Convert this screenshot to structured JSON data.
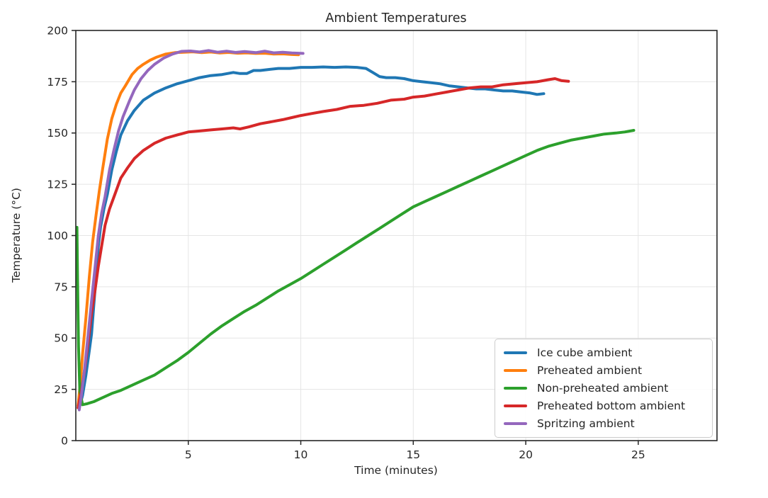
{
  "figure": {
    "title": "Ambient Temperatures",
    "xlabel": "Time (minutes)",
    "ylabel": "Temperature (°C)"
  },
  "chart_data": {
    "type": "line",
    "title": "Ambient Temperatures",
    "xlabel": "Time (minutes)",
    "ylabel": "Temperature (°C)",
    "xlim": [
      0,
      28.5
    ],
    "ylim": [
      0,
      200
    ],
    "xticks": [
      5,
      10,
      15,
      20,
      25
    ],
    "yticks": [
      0,
      25,
      50,
      75,
      100,
      125,
      150,
      175,
      200
    ],
    "grid": true,
    "grid_color": "#e5e5e5",
    "spine_color": "#262626",
    "legend": {
      "position": "lower right",
      "entries": [
        "Ice cube ambient",
        "Preheated ambient",
        "Non-preheated ambient",
        "Preheated bottom ambient",
        "Spritzing ambient"
      ]
    },
    "series": [
      {
        "name": "Ice cube ambient",
        "color": "#1f77b4",
        "points": [
          [
            0.15,
            16
          ],
          [
            0.3,
            22
          ],
          [
            0.45,
            32
          ],
          [
            0.6,
            44
          ],
          [
            0.7,
            52
          ],
          [
            0.8,
            66
          ],
          [
            0.9,
            80
          ],
          [
            1.0,
            95
          ],
          [
            1.1,
            104
          ],
          [
            1.25,
            113
          ],
          [
            1.4,
            120
          ],
          [
            1.6,
            132
          ],
          [
            1.8,
            141
          ],
          [
            2.0,
            149
          ],
          [
            2.3,
            156
          ],
          [
            2.6,
            161
          ],
          [
            3.0,
            166
          ],
          [
            3.5,
            169.5
          ],
          [
            4.0,
            172
          ],
          [
            4.5,
            174
          ],
          [
            5.0,
            175.5
          ],
          [
            5.5,
            177
          ],
          [
            6.0,
            178
          ],
          [
            6.5,
            178.5
          ],
          [
            7.0,
            179.5
          ],
          [
            7.3,
            179
          ],
          [
            7.6,
            179
          ],
          [
            7.9,
            180.5
          ],
          [
            8.2,
            180.5
          ],
          [
            8.6,
            181
          ],
          [
            9.0,
            181.5
          ],
          [
            9.5,
            181.5
          ],
          [
            10.0,
            182
          ],
          [
            10.5,
            182
          ],
          [
            11.0,
            182.2
          ],
          [
            11.5,
            182
          ],
          [
            12.0,
            182.2
          ],
          [
            12.5,
            182
          ],
          [
            12.9,
            181.5
          ],
          [
            13.2,
            179.5
          ],
          [
            13.5,
            177.5
          ],
          [
            13.8,
            177
          ],
          [
            14.2,
            177
          ],
          [
            14.6,
            176.5
          ],
          [
            15.0,
            175.5
          ],
          [
            15.4,
            175
          ],
          [
            15.8,
            174.5
          ],
          [
            16.2,
            174
          ],
          [
            16.6,
            173
          ],
          [
            17.0,
            172.5
          ],
          [
            17.4,
            172
          ],
          [
            17.8,
            171.5
          ],
          [
            18.2,
            171.5
          ],
          [
            18.6,
            171
          ],
          [
            19.0,
            170.5
          ],
          [
            19.4,
            170.5
          ],
          [
            19.8,
            170
          ],
          [
            20.2,
            169.5
          ],
          [
            20.5,
            168.8
          ],
          [
            20.8,
            169.2
          ]
        ]
      },
      {
        "name": "Preheated ambient",
        "color": "#ff7f0e",
        "points": [
          [
            0.1,
            17
          ],
          [
            0.2,
            28
          ],
          [
            0.3,
            42
          ],
          [
            0.45,
            60
          ],
          [
            0.6,
            80
          ],
          [
            0.75,
            97
          ],
          [
            0.9,
            110
          ],
          [
            1.05,
            122
          ],
          [
            1.2,
            133
          ],
          [
            1.4,
            147
          ],
          [
            1.6,
            157
          ],
          [
            1.8,
            164
          ],
          [
            2.0,
            169.5
          ],
          [
            2.2,
            173
          ],
          [
            2.5,
            178.5
          ],
          [
            2.75,
            181.5
          ],
          [
            3.0,
            183.5
          ],
          [
            3.3,
            185.5
          ],
          [
            3.6,
            187
          ],
          [
            4.0,
            188.5
          ],
          [
            4.4,
            189.2
          ],
          [
            4.8,
            189.4
          ],
          [
            5.2,
            189.6
          ],
          [
            5.6,
            189.2
          ],
          [
            6.0,
            189.5
          ],
          [
            6.4,
            189
          ],
          [
            6.8,
            189.3
          ],
          [
            7.2,
            188.9
          ],
          [
            7.6,
            189.1
          ],
          [
            8.0,
            188.8
          ],
          [
            8.4,
            188.9
          ],
          [
            8.8,
            188.5
          ],
          [
            9.2,
            188.6
          ],
          [
            9.6,
            188.3
          ],
          [
            9.9,
            188.2
          ]
        ]
      },
      {
        "name": "Non-preheated ambient",
        "color": "#2ca02c",
        "points": [
          [
            0.05,
            104
          ],
          [
            0.08,
            78
          ],
          [
            0.12,
            46
          ],
          [
            0.18,
            24
          ],
          [
            0.3,
            17.5
          ],
          [
            0.5,
            18
          ],
          [
            0.8,
            19
          ],
          [
            1.2,
            21
          ],
          [
            1.6,
            23
          ],
          [
            2.0,
            24.5
          ],
          [
            2.5,
            27
          ],
          [
            3.0,
            29.5
          ],
          [
            3.5,
            32
          ],
          [
            4.0,
            35.5
          ],
          [
            4.5,
            39
          ],
          [
            5.0,
            43
          ],
          [
            5.5,
            47.5
          ],
          [
            6.0,
            52
          ],
          [
            6.5,
            56
          ],
          [
            7.0,
            59.5
          ],
          [
            7.5,
            63
          ],
          [
            8.0,
            66
          ],
          [
            8.5,
            69.5
          ],
          [
            9.0,
            73
          ],
          [
            9.5,
            76
          ],
          [
            10.0,
            79
          ],
          [
            10.5,
            82.5
          ],
          [
            11.0,
            86
          ],
          [
            11.5,
            89.5
          ],
          [
            12.0,
            93
          ],
          [
            12.5,
            96.5
          ],
          [
            13.0,
            100
          ],
          [
            13.5,
            103.5
          ],
          [
            14.0,
            107
          ],
          [
            14.5,
            110.5
          ],
          [
            15.0,
            114
          ],
          [
            15.5,
            116.5
          ],
          [
            16.0,
            119
          ],
          [
            16.5,
            121.5
          ],
          [
            17.0,
            124
          ],
          [
            17.5,
            126.5
          ],
          [
            18.0,
            129
          ],
          [
            18.5,
            131.5
          ],
          [
            19.0,
            134
          ],
          [
            19.5,
            136.5
          ],
          [
            20.0,
            139
          ],
          [
            20.5,
            141.5
          ],
          [
            21.0,
            143.5
          ],
          [
            21.5,
            145
          ],
          [
            22.0,
            146.5
          ],
          [
            22.5,
            147.5
          ],
          [
            23.0,
            148.5
          ],
          [
            23.5,
            149.5
          ],
          [
            24.0,
            150
          ],
          [
            24.4,
            150.5
          ],
          [
            24.8,
            151.3
          ]
        ]
      },
      {
        "name": "Preheated bottom ambient",
        "color": "#d62728",
        "points": [
          [
            0.1,
            16
          ],
          [
            0.25,
            24
          ],
          [
            0.4,
            35
          ],
          [
            0.55,
            48
          ],
          [
            0.7,
            62
          ],
          [
            0.85,
            73
          ],
          [
            1.0,
            85
          ],
          [
            1.15,
            95
          ],
          [
            1.3,
            105
          ],
          [
            1.5,
            113
          ],
          [
            1.7,
            119
          ],
          [
            2.0,
            128
          ],
          [
            2.3,
            133
          ],
          [
            2.6,
            137.5
          ],
          [
            3.0,
            141.5
          ],
          [
            3.5,
            145
          ],
          [
            4.0,
            147.5
          ],
          [
            4.5,
            149
          ],
          [
            5.0,
            150.5
          ],
          [
            5.5,
            151
          ],
          [
            6.0,
            151.5
          ],
          [
            6.5,
            152
          ],
          [
            7.0,
            152.5
          ],
          [
            7.3,
            152
          ],
          [
            7.7,
            153
          ],
          [
            8.2,
            154.5
          ],
          [
            8.7,
            155.5
          ],
          [
            9.2,
            156.5
          ],
          [
            9.6,
            157.5
          ],
          [
            10.0,
            158.5
          ],
          [
            10.5,
            159.5
          ],
          [
            11.0,
            160.5
          ],
          [
            11.6,
            161.5
          ],
          [
            12.2,
            163
          ],
          [
            12.8,
            163.5
          ],
          [
            13.4,
            164.5
          ],
          [
            14.0,
            166
          ],
          [
            14.6,
            166.5
          ],
          [
            15.0,
            167.5
          ],
          [
            15.5,
            168
          ],
          [
            16.0,
            169
          ],
          [
            16.5,
            170
          ],
          [
            17.0,
            171
          ],
          [
            17.5,
            172
          ],
          [
            18.0,
            172.5
          ],
          [
            18.5,
            172.5
          ],
          [
            19.0,
            173.5
          ],
          [
            19.5,
            174
          ],
          [
            20.0,
            174.5
          ],
          [
            20.5,
            175
          ],
          [
            21.0,
            176
          ],
          [
            21.3,
            176.5
          ],
          [
            21.6,
            175.5
          ],
          [
            21.9,
            175.2
          ]
        ]
      },
      {
        "name": "Spritzing ambient",
        "color": "#9467bd",
        "points": [
          [
            0.15,
            15
          ],
          [
            0.25,
            22
          ],
          [
            0.4,
            36
          ],
          [
            0.55,
            52
          ],
          [
            0.7,
            68
          ],
          [
            0.85,
            84
          ],
          [
            1.0,
            100
          ],
          [
            1.15,
            111
          ],
          [
            1.3,
            119
          ],
          [
            1.5,
            132
          ],
          [
            1.7,
            142
          ],
          [
            1.9,
            151
          ],
          [
            2.1,
            158
          ],
          [
            2.4,
            166
          ],
          [
            2.6,
            171
          ],
          [
            2.9,
            176.5
          ],
          [
            3.2,
            180.5
          ],
          [
            3.5,
            183.5
          ],
          [
            3.9,
            186.5
          ],
          [
            4.3,
            188.5
          ],
          [
            4.7,
            189.8
          ],
          [
            5.1,
            190
          ],
          [
            5.5,
            189.5
          ],
          [
            5.9,
            190.2
          ],
          [
            6.3,
            189.4
          ],
          [
            6.7,
            189.9
          ],
          [
            7.1,
            189.3
          ],
          [
            7.5,
            189.7
          ],
          [
            8.0,
            189.2
          ],
          [
            8.4,
            189.9
          ],
          [
            8.8,
            189.1
          ],
          [
            9.2,
            189.4
          ],
          [
            9.6,
            189
          ],
          [
            10.1,
            188.8
          ]
        ]
      }
    ]
  }
}
